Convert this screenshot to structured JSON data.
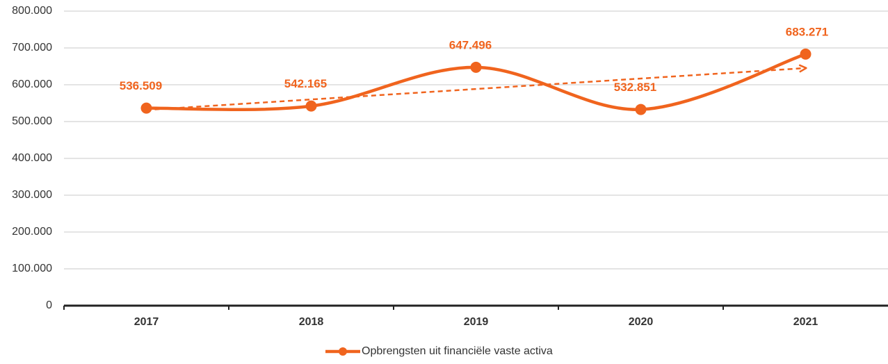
{
  "chart_data": {
    "type": "line",
    "categories": [
      "2017",
      "2018",
      "2019",
      "2020",
      "2021"
    ],
    "series": [
      {
        "name": "Opbrengsten uit financiële vaste activa",
        "color": "#f0641e",
        "values": [
          536509,
          542165,
          647496,
          532851,
          683271
        ],
        "value_labels": [
          "536.509",
          "542.165",
          "647.496",
          "532.851",
          "683.271"
        ]
      }
    ],
    "ylim": [
      0,
      800000
    ],
    "yticks": [
      0,
      {
        "value": 100000,
        "label": "100.000"
      },
      {
        "value": 200000,
        "label": "200.000"
      },
      {
        "value": 300000,
        "label": "300.000"
      },
      {
        "value": 400000,
        "label": "400.000"
      },
      {
        "value": 500000,
        "label": "500.000"
      },
      {
        "value": 600000,
        "label": "600.000"
      },
      {
        "value": 700000,
        "label": "700.000"
      },
      {
        "value": 800000,
        "label": "800.000"
      }
    ],
    "grid": true,
    "smooth": true,
    "trendline": true,
    "legend": "bottom"
  }
}
